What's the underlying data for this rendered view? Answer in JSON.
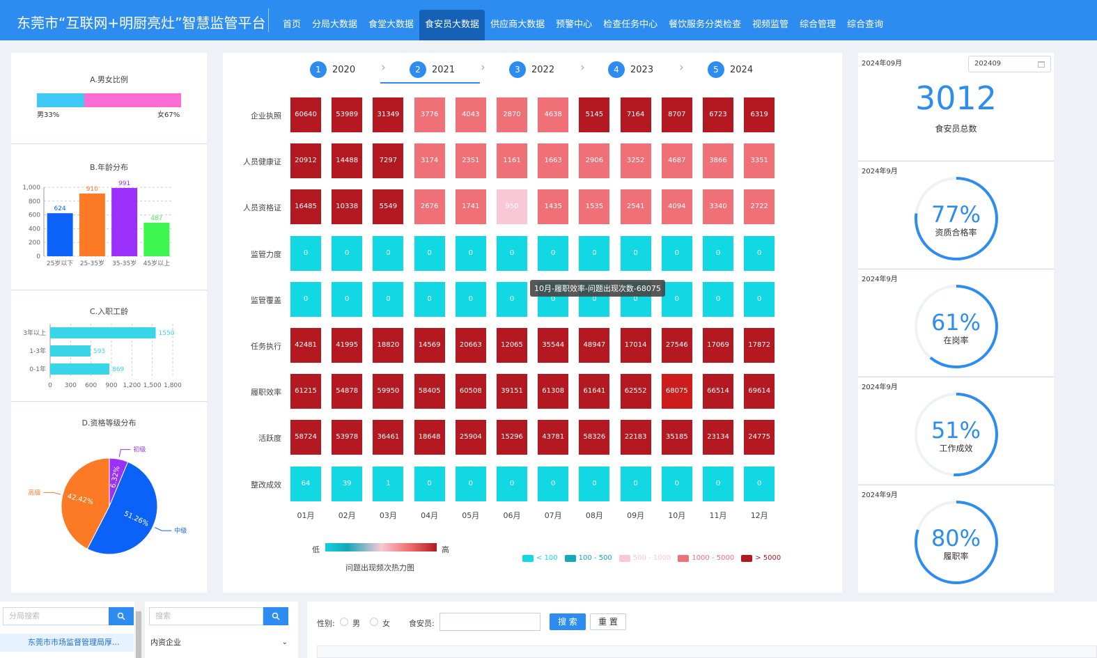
{
  "app": {
    "title": "东莞市“互联网+明厨亮灶”智慧监管平台"
  },
  "nav": {
    "items": [
      "首页",
      "分局大数据",
      "食堂大数据",
      "食安员大数据",
      "供应商大数据",
      "预警中心",
      "检查任务中心",
      "餐饮服务分类检查",
      "视频监管",
      "综合管理",
      "综合查询"
    ],
    "active_index": 3
  },
  "gender": {
    "title": "A.男女比例",
    "male_label": "男33%",
    "female_label": "女67%",
    "male_pct": 33,
    "female_pct": 67,
    "male_color": "#3ec8f4",
    "female_color": "#fc6cd4"
  },
  "age": {
    "title": "B.年龄分布",
    "chart_data": {
      "type": "bar",
      "categories": [
        "25岁以下",
        "25-35岁",
        "35-35岁",
        "45岁以上"
      ],
      "values": [
        624,
        910,
        991,
        487
      ],
      "colors": [
        "#0a62f8",
        "#fc7a26",
        "#9a30fa",
        "#3df54f"
      ],
      "yticks": [
        0,
        200,
        400,
        600,
        800,
        1000
      ],
      "ytick_labels": [
        "0",
        "200",
        "400",
        "600",
        "800",
        "1,000"
      ],
      "ylim": [
        0,
        1000
      ]
    }
  },
  "tenure": {
    "title": "C.入职工龄",
    "chart_data": {
      "type": "bar",
      "orientation": "horizontal",
      "categories": [
        "3年以上",
        "1-3年",
        "0-1年"
      ],
      "values": [
        1550,
        593,
        869
      ],
      "color": "#38d6e6",
      "xticks": [
        0,
        300,
        600,
        900,
        1200,
        1500,
        1800
      ],
      "xtick_labels": [
        "0",
        "300",
        "600",
        "900",
        "1,200",
        "1,500",
        "1,800"
      ],
      "xlim": [
        0,
        1800
      ]
    }
  },
  "grade": {
    "title": "D.资格等级分布",
    "chart_data": {
      "type": "pie",
      "slices": [
        {
          "name": "初级",
          "pct": 6.32,
          "label": "6.32%",
          "color": "#9a30fa"
        },
        {
          "name": "中级",
          "pct": 51.26,
          "label": "51.26%",
          "color": "#0a62f8"
        },
        {
          "name": "高级",
          "pct": 42.42,
          "label": "42.42%",
          "color": "#fc7a26"
        }
      ]
    }
  },
  "years": {
    "steps": [
      {
        "num": "1",
        "year": "2020"
      },
      {
        "num": "2",
        "year": "2021"
      },
      {
        "num": "3",
        "year": "2022"
      },
      {
        "num": "4",
        "year": "2023"
      },
      {
        "num": "5",
        "year": "2024"
      }
    ],
    "active_index": 1
  },
  "heatmap": {
    "chart_data": {
      "type": "heatmap",
      "rows": [
        "企业执照",
        "人员健康证",
        "人员资格证",
        "监管力度",
        "监管覆盖",
        "任务执行",
        "履职效率",
        "活跃度",
        "整改成效"
      ],
      "cols": [
        "01月",
        "02月",
        "03月",
        "04月",
        "05月",
        "06月",
        "07月",
        "08月",
        "09月",
        "10月",
        "11月",
        "12月"
      ],
      "values": [
        [
          60640,
          53989,
          31349,
          3776,
          4043,
          2870,
          4638,
          5145,
          7164,
          8707,
          6723,
          6319
        ],
        [
          20912,
          14488,
          7297,
          3174,
          2351,
          1161,
          1663,
          2906,
          3252,
          4687,
          3866,
          3351
        ],
        [
          16485,
          10338,
          5549,
          2676,
          1741,
          950,
          1435,
          1535,
          2541,
          4094,
          3340,
          2722
        ],
        [
          0,
          0,
          0,
          0,
          0,
          0,
          0,
          0,
          0,
          0,
          0,
          0
        ],
        [
          0,
          0,
          0,
          0,
          0,
          0,
          0,
          0,
          0,
          0,
          0,
          0
        ],
        [
          42481,
          41995,
          18820,
          14569,
          20663,
          12065,
          35544,
          48947,
          17014,
          27546,
          17069,
          17872
        ],
        [
          61215,
          54878,
          59950,
          58405,
          60508,
          39151,
          61308,
          61641,
          62552,
          68075,
          66514,
          69614
        ],
        [
          58724,
          53978,
          36461,
          18648,
          25904,
          15296,
          43781,
          58326,
          22183,
          35185,
          23134,
          24775
        ],
        [
          64,
          39,
          1,
          0,
          0,
          0,
          0,
          0,
          0,
          0,
          0,
          0
        ]
      ],
      "highlight": {
        "row": 6,
        "col": 9
      }
    },
    "tooltip": "10月-履职效率-问题出现次数-68075",
    "gradient_low": "低",
    "gradient_high": "高",
    "caption": "问题出现频次热力图",
    "legend": [
      {
        "label": "< 100",
        "color": "#12d8e4",
        "max": 100
      },
      {
        "label": "100 - 500",
        "color": "#14a8b8",
        "max": 500
      },
      {
        "label": "500 - 1000",
        "color": "#f8c8d4",
        "max": 1000
      },
      {
        "label": "1000 - 5000",
        "color": "#f07078",
        "max": 5000
      },
      {
        "label": "> 5000",
        "color": "#b41820",
        "max": null
      }
    ],
    "highlight_color": "#cc1c1c"
  },
  "right": {
    "date_label": "2024年09月",
    "date_value": "202409",
    "total": "3012",
    "total_label": "食安员总数",
    "rings": [
      {
        "date": "2024年9月",
        "value": "77%",
        "pct": 77,
        "label": "资质合格率"
      },
      {
        "date": "2024年9月",
        "value": "61%",
        "pct": 61,
        "label": "在岗率"
      },
      {
        "date": "2024年9月",
        "value": "51%",
        "pct": 51,
        "label": "工作成效"
      },
      {
        "date": "2024年9月",
        "value": "80%",
        "pct": 80,
        "label": "履职率"
      }
    ]
  },
  "bottom": {
    "branch_search_placeholder": "分局搜索",
    "search_placeholder": "搜索",
    "tree_item": "东莞市市场监督管理局厚...",
    "select_value": "内资企业",
    "gender_label": "性别:",
    "male": "男",
    "female": "女",
    "officer_label": "食安员:",
    "search_btn": "搜 索",
    "reset_btn": "重 置"
  }
}
